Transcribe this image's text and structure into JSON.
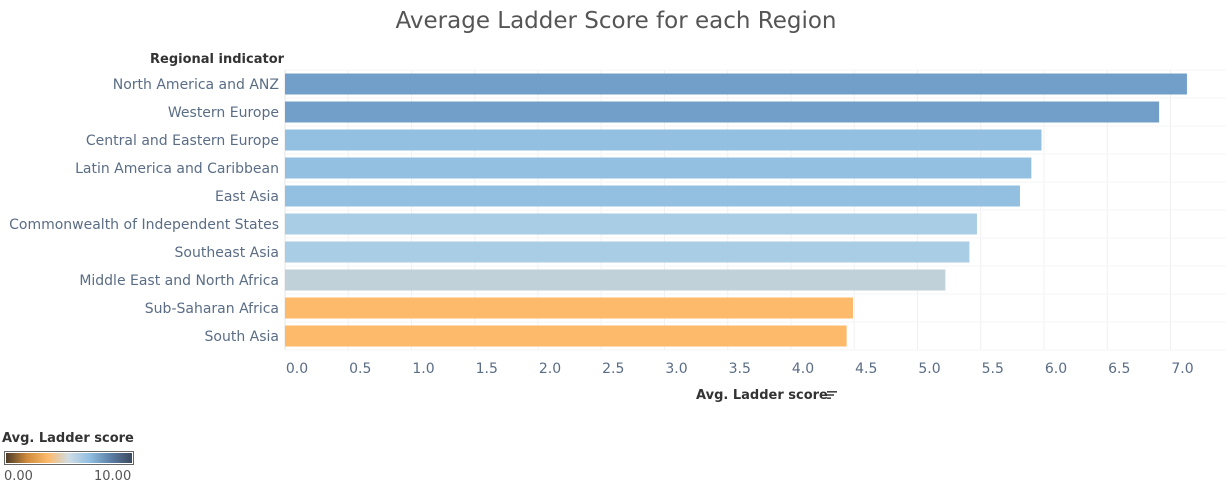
{
  "chart_data": {
    "type": "bar",
    "orientation": "horizontal",
    "title": "Average Ladder Score for each Region",
    "row_header": "Regional indicator",
    "xlabel": "Avg. Ladder score",
    "categories": [
      "North America and ANZ",
      "Western Europe",
      "Central and Eastern Europe",
      "Latin America and Caribbean",
      "East Asia",
      "Commonwealth of Independent States",
      "Southeast Asia",
      "Middle East and North Africa",
      "Sub-Saharan Africa",
      "South Asia"
    ],
    "values": [
      7.13,
      6.91,
      5.98,
      5.9,
      5.81,
      5.47,
      5.41,
      5.22,
      4.49,
      4.44
    ],
    "bar_colors": [
      "#729fc9",
      "#729fc9",
      "#93c0e1",
      "#93c0e1",
      "#93c0e1",
      "#a8cde5",
      "#a8cde5",
      "#c0d1d9",
      "#fdba6b",
      "#fdba6b"
    ],
    "xlim": [
      0,
      7.4
    ],
    "xticks": [
      "0.0",
      "0.5",
      "1.0",
      "1.5",
      "2.0",
      "2.5",
      "3.0",
      "3.5",
      "4.0",
      "4.5",
      "5.0",
      "5.5",
      "6.0",
      "6.5",
      "7.0"
    ],
    "grid": true,
    "sorted": "descending",
    "legend": {
      "title": "Avg. Ladder score",
      "min_label": "0.00",
      "max_label": "10.00",
      "color_stops": [
        "#4d3b2a",
        "#d08c3c",
        "#fdba6b",
        "#cfdce6",
        "#8fbde0",
        "#5c7fa6",
        "#3c4a5e"
      ]
    }
  },
  "icons": {
    "sort": "sort-descending-icon"
  }
}
